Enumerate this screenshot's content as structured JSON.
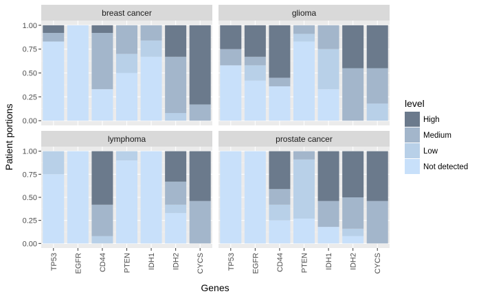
{
  "chart_data": {
    "type": "bar",
    "stacked": true,
    "xlabel": "Genes",
    "ylabel": "Patient portions",
    "ylim": [
      0,
      1
    ],
    "yticks": [
      "0.00",
      "0.25",
      "0.50",
      "0.75",
      "1.00"
    ],
    "categories": [
      "TP53",
      "EGFR",
      "CD44",
      "PTEN",
      "IDH1",
      "IDH2",
      "CYCS"
    ],
    "legend": {
      "title": "level",
      "position": "right",
      "items": [
        {
          "label": "High",
          "color": "#6b7a8c"
        },
        {
          "label": "Medium",
          "color": "#a3b6cb"
        },
        {
          "label": "Low",
          "color": "#b8d0e8"
        },
        {
          "label": "Not detected",
          "color": "#c8e0fa"
        }
      ]
    },
    "stack_order_bottom_to_top": [
      "Not detected",
      "Low",
      "Medium",
      "High"
    ],
    "panels": [
      {
        "title": "breast cancer",
        "series": [
          {
            "name": "Not detected",
            "values": [
              0.83,
              1.0,
              0.33,
              0.5,
              0.67,
              0.0,
              0.0
            ]
          },
          {
            "name": "Low",
            "values": [
              0.0,
              0.0,
              0.0,
              0.2,
              0.17,
              0.08,
              0.0
            ]
          },
          {
            "name": "Medium",
            "values": [
              0.09,
              0.0,
              0.59,
              0.3,
              0.16,
              0.59,
              0.17
            ]
          },
          {
            "name": "High",
            "values": [
              0.08,
              0.0,
              0.08,
              0.0,
              0.0,
              0.33,
              0.83
            ]
          }
        ]
      },
      {
        "title": "glioma",
        "series": [
          {
            "name": "Not detected",
            "values": [
              0.58,
              0.42,
              0.36,
              0.83,
              0.33,
              0.0,
              0.0
            ]
          },
          {
            "name": "Low",
            "values": [
              0.0,
              0.16,
              0.0,
              0.08,
              0.42,
              0.0,
              0.18
            ]
          },
          {
            "name": "Medium",
            "values": [
              0.17,
              0.09,
              0.09,
              0.09,
              0.25,
              0.55,
              0.37
            ]
          },
          {
            "name": "High",
            "values": [
              0.25,
              0.33,
              0.55,
              0.0,
              0.0,
              0.45,
              0.45
            ]
          }
        ]
      },
      {
        "title": "lymphoma",
        "series": [
          {
            "name": "Not detected",
            "values": [
              0.75,
              1.0,
              0.0,
              0.9,
              1.0,
              0.33,
              0.0
            ]
          },
          {
            "name": "Low",
            "values": [
              0.25,
              0.0,
              0.08,
              0.1,
              0.0,
              0.09,
              0.0
            ]
          },
          {
            "name": "Medium",
            "values": [
              0.0,
              0.0,
              0.34,
              0.0,
              0.0,
              0.25,
              0.46
            ]
          },
          {
            "name": "High",
            "values": [
              0.0,
              0.0,
              0.58,
              0.0,
              0.0,
              0.33,
              0.54
            ]
          }
        ]
      },
      {
        "title": "prostate cancer",
        "series": [
          {
            "name": "Not detected",
            "values": [
              1.0,
              1.0,
              0.25,
              0.27,
              0.18,
              0.08,
              0.0
            ]
          },
          {
            "name": "Low",
            "values": [
              0.0,
              0.0,
              0.17,
              0.64,
              0.0,
              0.08,
              0.0
            ]
          },
          {
            "name": "Medium",
            "values": [
              0.0,
              0.0,
              0.17,
              0.09,
              0.28,
              0.34,
              0.46
            ]
          },
          {
            "name": "High",
            "values": [
              0.0,
              0.0,
              0.41,
              0.0,
              0.54,
              0.5,
              0.54
            ]
          }
        ]
      }
    ]
  }
}
